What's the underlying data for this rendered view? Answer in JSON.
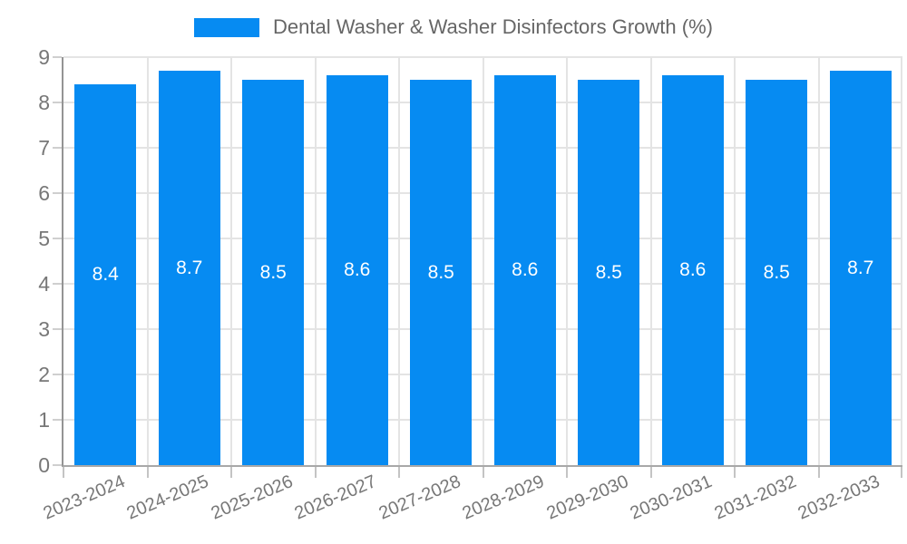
{
  "legend": {
    "swatch_color": "#068bf2",
    "label": "Dental Washer & Washer Disinfectors Growth (%)"
  },
  "chart_data": {
    "type": "bar",
    "title": "Dental Washer & Washer Disinfectors Growth (%)",
    "categories": [
      "2023-2024",
      "2024-2025",
      "2025-2026",
      "2026-2027",
      "2027-2028",
      "2028-2029",
      "2029-2030",
      "2030-2031",
      "2031-2032",
      "2032-2033"
    ],
    "values": [
      8.4,
      8.7,
      8.5,
      8.6,
      8.5,
      8.6,
      8.5,
      8.6,
      8.5,
      8.7
    ],
    "value_labels": [
      "8.4",
      "8.7",
      "8.5",
      "8.6",
      "8.5",
      "8.6",
      "8.5",
      "8.6",
      "8.5",
      "8.7"
    ],
    "xlabel": "",
    "ylabel": "",
    "ylim": [
      0,
      9
    ],
    "yticks": [
      0,
      1,
      2,
      3,
      4,
      5,
      6,
      7,
      8,
      9
    ],
    "grid": true,
    "legend_position": "top-center",
    "bar_color": "#068bf2",
    "bar_label_color": "#ffffff",
    "axis_label_color": "#777777",
    "gridline_color": "#e4e4e4",
    "x_label_rotation_deg": -23
  }
}
